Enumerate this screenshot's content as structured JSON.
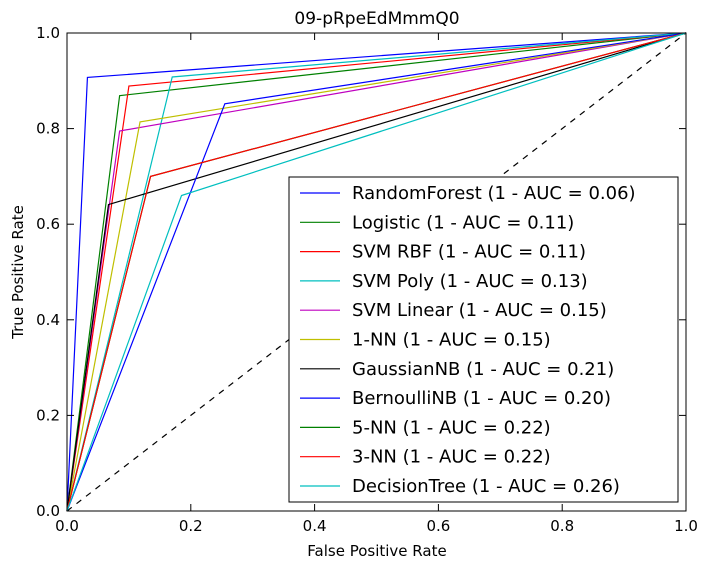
{
  "chart_data": {
    "type": "line",
    "title": "09-pRpeEdMmmQ0",
    "xlabel": "False Positive Rate",
    "ylabel": "True Positive Rate",
    "xlim": [
      0,
      1
    ],
    "ylim": [
      0,
      1
    ],
    "xticks": [
      "0.0",
      "0.2",
      "0.4",
      "0.6",
      "0.8",
      "1.0"
    ],
    "yticks": [
      "0.0",
      "0.2",
      "0.4",
      "0.6",
      "0.8",
      "1.0"
    ],
    "legend_position": "lower-right",
    "grid": false,
    "reference_line": {
      "x": [
        0,
        1
      ],
      "y": [
        0,
        1
      ],
      "style": "dashed",
      "color": "#000000"
    },
    "series": [
      {
        "name": "RandomForest (1 - AUC = 0.06)",
        "color": "#0000ff",
        "x": [
          0,
          0.033,
          1
        ],
        "y": [
          0,
          0.907,
          1
        ]
      },
      {
        "name": "Logistic (1 - AUC = 0.11)",
        "color": "#008000",
        "x": [
          0,
          0.085,
          1
        ],
        "y": [
          0,
          0.869,
          1
        ]
      },
      {
        "name": "SVM RBF (1 - AUC = 0.11)",
        "color": "#ff0000",
        "x": [
          0,
          0.1,
          1
        ],
        "y": [
          0,
          0.889,
          1
        ]
      },
      {
        "name": "SVM Poly (1 - AUC = 0.13)",
        "color": "#00bfbf",
        "x": [
          0,
          0.17,
          1
        ],
        "y": [
          0,
          0.908,
          1
        ]
      },
      {
        "name": "SVM Linear (1 - AUC = 0.15)",
        "color": "#bf00bf",
        "x": [
          0,
          0.085,
          1
        ],
        "y": [
          0,
          0.795,
          1
        ]
      },
      {
        "name": "1-NN (1 - AUC = 0.15)",
        "color": "#bfbf00",
        "x": [
          0,
          0.118,
          1
        ],
        "y": [
          0,
          0.814,
          1
        ]
      },
      {
        "name": "GaussianNB (1 - AUC = 0.21)",
        "color": "#000000",
        "x": [
          0,
          0.067,
          1
        ],
        "y": [
          0,
          0.641,
          1
        ]
      },
      {
        "name": "BernoulliNB (1 - AUC = 0.20)",
        "color": "#0000ff",
        "x": [
          0,
          0.255,
          1
        ],
        "y": [
          0,
          0.852,
          1
        ]
      },
      {
        "name": "5-NN (1 - AUC = 0.22)",
        "color": "#008000",
        "x": [
          0,
          0.135,
          1
        ],
        "y": [
          0,
          0.7,
          1
        ]
      },
      {
        "name": "3-NN (1 - AUC = 0.22)",
        "color": "#ff0000",
        "x": [
          0,
          0.135,
          1
        ],
        "y": [
          0,
          0.7,
          1
        ]
      },
      {
        "name": "DecisionTree (1 - AUC = 0.26)",
        "color": "#00bfbf",
        "x": [
          0,
          0.185,
          1
        ],
        "y": [
          0,
          0.66,
          1
        ]
      }
    ]
  }
}
